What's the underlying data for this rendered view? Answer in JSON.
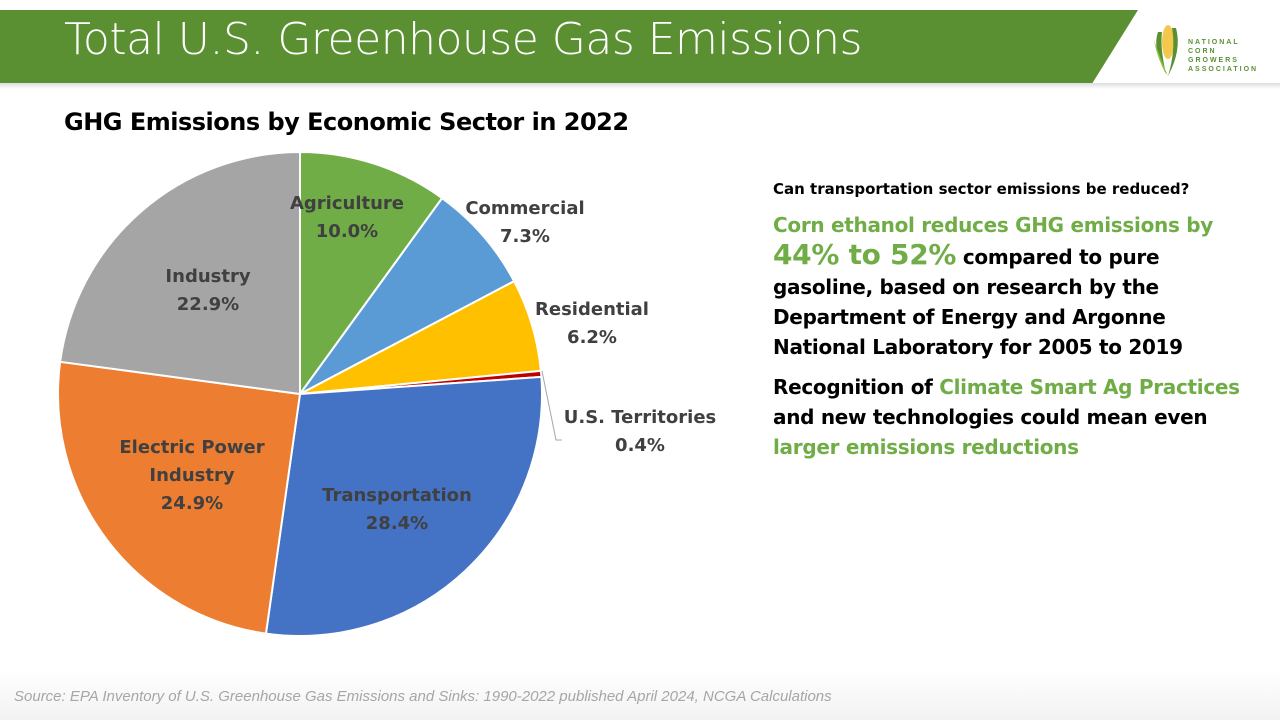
{
  "header": {
    "title": "Total U.S. Greenhouse Gas Emissions",
    "logo_text": [
      "NATIONAL",
      "CORN GROWERS",
      "ASSOCIATION"
    ]
  },
  "chart_data": {
    "type": "pie",
    "title": "GHG Emissions by Economic Sector in 2022",
    "start": "top",
    "direction": "clockwise",
    "slices": [
      {
        "label": "Agriculture",
        "value": 10.0,
        "display": "10.0%",
        "color": "#70ad47"
      },
      {
        "label": "Commercial",
        "value": 7.3,
        "display": "7.3%",
        "color": "#5b9bd5"
      },
      {
        "label": "Residential",
        "value": 6.2,
        "display": "6.2%",
        "color": "#ffc000"
      },
      {
        "label": "U.S. Territories",
        "value": 0.4,
        "display": "0.4%",
        "color": "#c00000"
      },
      {
        "label": "Transportation",
        "value": 28.4,
        "display": "28.4%",
        "color": "#4472c4"
      },
      {
        "label": "Electric Power Industry",
        "value": 24.9,
        "display": "24.9%",
        "color": "#ed7d31"
      },
      {
        "label": "Industry",
        "value": 22.9,
        "display": "22.9%",
        "color": "#a5a5a5"
      }
    ]
  },
  "right": {
    "question": "Can transportation sector emissions be reduced?",
    "p1_green": "Corn ethanol reduces GHG emissions by",
    "p1_big": "44% to 52%",
    "p1_rest": "compared to pure gasoline, based on research by the Department of Energy and Argonne National Laboratory for 2005 to 2019",
    "p2_a": "Recognition of",
    "p2_green1": "Climate Smart Ag Practices",
    "p2_b": "and new technologies could mean even",
    "p2_green2": "larger emissions reductions"
  },
  "source": "Source: EPA Inventory of U.S. Greenhouse Gas Emissions and Sinks: 1990-2022 published April 2024, NCGA Calculations"
}
